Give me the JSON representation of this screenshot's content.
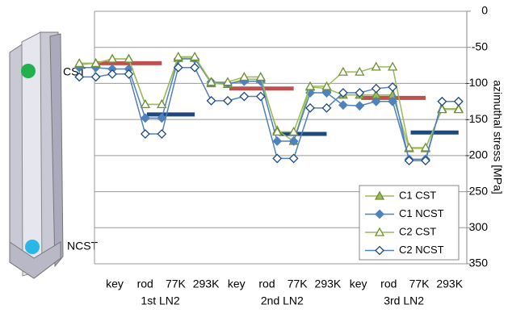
{
  "chart_data": {
    "type": "line",
    "categories": [
      "key",
      null,
      "rod",
      null,
      "77K",
      null,
      "293K",
      null,
      "key",
      null,
      "rod",
      null,
      "77K",
      null,
      "293K",
      null,
      "key",
      null,
      "rod",
      null,
      "77K",
      null,
      "293K",
      null
    ],
    "groups": [
      "1st LN2",
      "2nd LN2",
      "3rd LN2"
    ],
    "series": [
      {
        "name": "C1 CST",
        "color": "#9bbb59",
        "marker": "triangle-filled",
        "values": [
          -74,
          -72,
          -66,
          -66,
          -129,
          -129,
          -65,
          -65,
          -100,
          -101,
          -94,
          -94,
          -165,
          -180,
          -105,
          -107,
          -116,
          -116,
          -116,
          -116,
          -190,
          -190,
          -135,
          -135
        ]
      },
      {
        "name": "C1 NCST",
        "color": "#4f81bd",
        "marker": "diamond-filled",
        "values": [
          -78,
          -78,
          -80,
          -80,
          -148,
          -148,
          -66,
          -66,
          -98,
          -100,
          -97,
          -97,
          -180,
          -180,
          -113,
          -113,
          -130,
          -131,
          -125,
          -125,
          -205,
          -205,
          -125,
          -125
        ]
      },
      {
        "name": "C2 CST",
        "color": "#9bbb59",
        "marker": "triangle-open",
        "values": [
          -72,
          -72,
          -66,
          -66,
          -129,
          -129,
          -63,
          -63,
          -98,
          -98,
          -91,
          -91,
          -167,
          -167,
          -104,
          -104,
          -84,
          -84,
          -77,
          -77,
          -189,
          -189,
          -136,
          -136
        ]
      },
      {
        "name": "C2 NCST",
        "color": "#4f81bd",
        "marker": "diamond-open",
        "values": [
          -91,
          -91,
          -87,
          -87,
          -170,
          -170,
          -78,
          -78,
          -124,
          -124,
          -118,
          -118,
          -204,
          -204,
          -134,
          -134,
          -113,
          -113,
          -107,
          -105,
          -207,
          -207,
          -125,
          -125
        ]
      }
    ],
    "prediction_lines": [
      {
        "color": "#c0504d",
        "values": [
          -72,
          -107,
          -120
        ]
      },
      {
        "color": "#1f497d",
        "values": [
          -143,
          -170,
          -168
        ]
      }
    ],
    "y_axis_label": "azimuthal stress [MPa]",
    "ylim": [
      0,
      -350
    ],
    "yticks": [
      0,
      -50,
      -100,
      -150,
      -200,
      {
        "value": -250,
        "label": "250"
      },
      {
        "value": -300,
        "label": "300"
      },
      {
        "value": -350,
        "label": "350"
      }
    ],
    "grid": true,
    "legend": "lower-right"
  },
  "annotations": {
    "top_marker": "CST",
    "bottom_marker": "NCST"
  }
}
